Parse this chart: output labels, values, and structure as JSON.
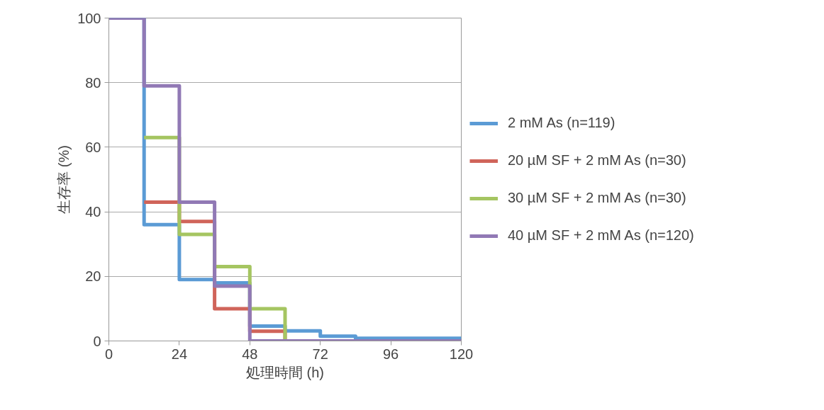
{
  "chart_data": {
    "type": "step",
    "xlabel": "処理時間 (h)",
    "ylabel": "生存率 (%)",
    "x": [
      0,
      12,
      24,
      36,
      48,
      60,
      72,
      84,
      96,
      108,
      120
    ],
    "series": [
      {
        "name": "2 mM As (n=119)",
        "color": "#5b9bd5",
        "values": [
          100,
          36,
          19,
          18,
          4.6,
          3.1,
          1.5,
          0.8,
          0.8,
          0.8,
          0.8
        ]
      },
      {
        "name": "20 µM SF + 2 mM As (n=30)",
        "color": "#d0645a",
        "values": [
          null,
          43,
          37,
          10,
          3,
          0,
          null,
          null,
          null,
          null,
          null
        ]
      },
      {
        "name": "30 µM SF + 2 mM As (n=30)",
        "color": "#a5c561",
        "values": [
          null,
          63,
          33,
          23,
          10,
          0,
          null,
          null,
          null,
          null,
          null
        ]
      },
      {
        "name": "40 µM SF + 2 mM As (n=120)",
        "color": "#9179b5",
        "values": [
          100,
          79,
          43,
          17,
          0,
          0,
          0,
          0,
          0,
          0,
          0
        ]
      }
    ],
    "xlim": [
      0,
      120
    ],
    "xticks": [
      0,
      24,
      48,
      72,
      96,
      120
    ],
    "ylim": [
      0,
      100
    ],
    "yticks": [
      0,
      20,
      40,
      60,
      80,
      100
    ],
    "grid": "y",
    "legend": "right",
    "line_style": "solid"
  }
}
